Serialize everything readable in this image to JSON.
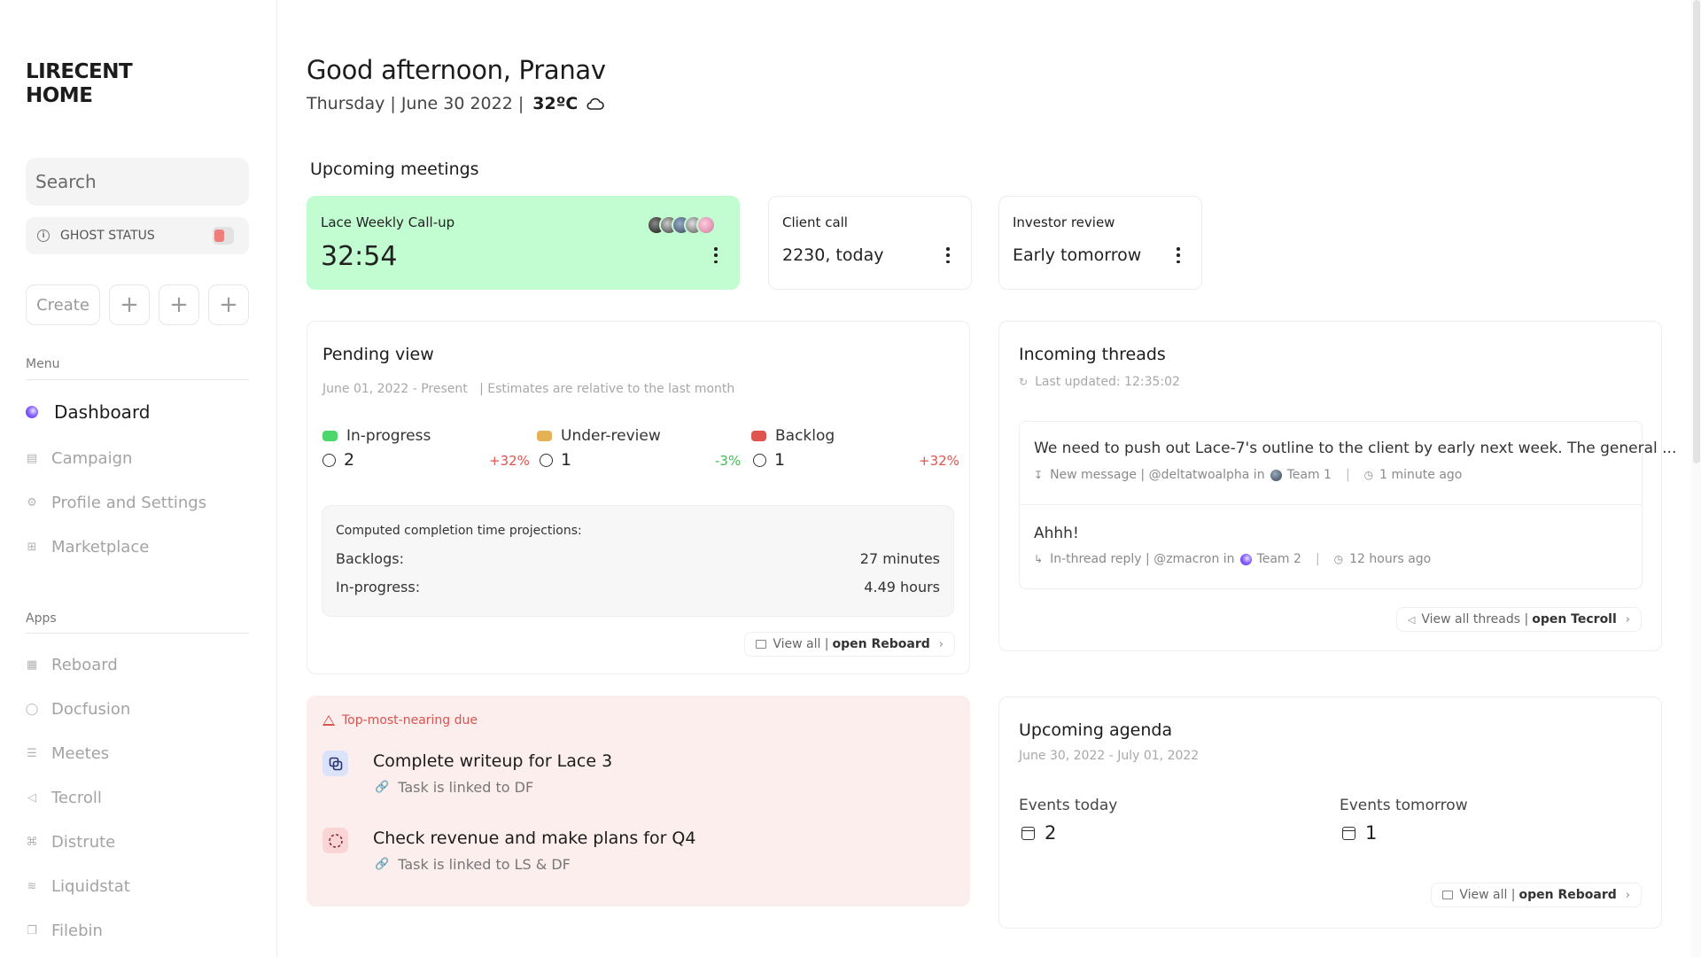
{
  "sidebar": {
    "brand": "LIRECENT\nHOME",
    "search_placeholder": "Search",
    "ghost_status": "GHOST STATUS",
    "create_label": "Create",
    "plus_label": "+",
    "menu_label": "Menu",
    "menu_items": [
      {
        "label": "Dashboard",
        "icon": "gradient-orb-icon",
        "active": true
      },
      {
        "label": "Campaign",
        "icon": "document-icon"
      },
      {
        "label": "Profile and Settings",
        "icon": "gear-icon"
      },
      {
        "label": "Marketplace",
        "icon": "cart-icon"
      }
    ],
    "apps_label": "Apps",
    "apps": [
      {
        "label": "Reboard",
        "icon": "map-icon"
      },
      {
        "label": "Docfusion",
        "icon": "bubble-icon"
      },
      {
        "label": "Meetes",
        "icon": "list-icon"
      },
      {
        "label": "Tecroll",
        "icon": "megaphone-icon"
      },
      {
        "label": "Distrute",
        "icon": "corner-icon"
      },
      {
        "label": "Liquidstat",
        "icon": "chart-icon"
      },
      {
        "label": "Filebin",
        "icon": "file-icon"
      }
    ]
  },
  "header": {
    "greeting": "Good afternoon, Pranav",
    "date": "Thursday | June 30 2022 |",
    "temperature": "32ºC",
    "weather_icon": "cloud-icon"
  },
  "meetings": {
    "title": "Upcoming meetings",
    "items": [
      {
        "title": "Lace Weekly Call-up",
        "value": "32:54"
      },
      {
        "title": "Client call",
        "value": "2230, today"
      },
      {
        "title": "Investor review",
        "value": "Early tomorrow"
      }
    ]
  },
  "pending": {
    "title": "Pending view",
    "range": "June 01, 2022 - Present",
    "note": "| Estimates are relative to the last month",
    "statuses": [
      {
        "label": "In-progress",
        "count": "2",
        "delta": "+32%",
        "color": "#4cd66b",
        "delta_color": "#e0544f"
      },
      {
        "label": "Under-review",
        "count": "1",
        "delta": "-3%",
        "color": "#e4b154",
        "delta_color": "#3bbf52"
      },
      {
        "label": "Backlog",
        "count": "1",
        "delta": "+32%",
        "color": "#e0544f",
        "delta_color": "#e0544f"
      }
    ],
    "projection_title": "Computed completion time projections:",
    "projections": [
      {
        "label": "Backlogs:",
        "value": "27 minutes"
      },
      {
        "label": "In-progress:",
        "value": "4.49 hours"
      }
    ],
    "view_all": "View all |",
    "open_link": "open Reboard"
  },
  "threads": {
    "title": "Incoming threads",
    "updated": "Last updated: 12:35:02",
    "items": [
      {
        "text": "We need to push out Lace-7's outline to the client by early next week. The general ...",
        "kind": "New message | @deltatwoalpha in",
        "team": "Team 1",
        "time": "1 minute ago"
      },
      {
        "text": "Ahhh!",
        "kind": "In-thread reply | @zmacron in",
        "team": "Team 2",
        "time": "12 hours ago"
      }
    ],
    "view_all": "View all threads |",
    "open_link": "open Tecroll"
  },
  "due": {
    "title": "Top-most-nearing due",
    "tasks": [
      {
        "title": "Complete writeup for Lace 3",
        "link": "Task is linked to DF"
      },
      {
        "title": "Check revenue and make plans for Q4",
        "link": "Task is linked to LS & DF"
      }
    ]
  },
  "agenda": {
    "title": "Upcoming agenda",
    "range": "June 30, 2022 - July 01, 2022",
    "today_label": "Events today",
    "today_count": "2",
    "tomorrow_label": "Events tomorrow",
    "tomorrow_count": "1",
    "view_all": "View all |",
    "open_link": "open Reboard"
  }
}
